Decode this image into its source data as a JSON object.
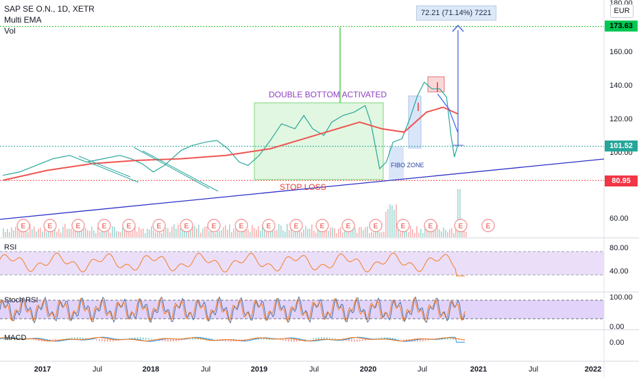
{
  "header": {
    "symbol": "SAP SE O.N., 1D, XETR",
    "indicator_1": "Multi EMA",
    "indicator_2": "Vol",
    "currency": "EUR"
  },
  "measure_label": "72.21 (71.14%) 7221",
  "price_badges": {
    "target": "173.63",
    "current": "101.52",
    "stop": "80.95"
  },
  "annotations": {
    "double_bottom": "DOUBLE BOTTOM ACTIVATED",
    "stop_loss": "STOP LOSS",
    "fibo_zone": "FIBO ZONE"
  },
  "earnings_marker": "E",
  "panes": {
    "rsi": "RSI",
    "stoch": "Stoch RSI",
    "macd": "MACD"
  },
  "colors": {
    "price_line": "#26a69a",
    "ema_long": "#ef5350",
    "ema_short": "#2962ff",
    "trendline": "#2b2fc7",
    "rsi_line": "#f57c1f",
    "rsi_band": "#e6d6f7",
    "stoch_k": "#4a6fa5",
    "stoch_d": "#f57c1f",
    "stoch_band": "#d9c8f7",
    "macd_line": "#2196f3",
    "signal_line": "#ff6d00",
    "target_green": "#00c853",
    "stop_red": "#ff0000"
  },
  "chart_data": {
    "type": "line",
    "title": "SAP SE O.N., 1D, XETR",
    "currency": "EUR",
    "x_ticks": [
      "2017",
      "Jul",
      "2018",
      "Jul",
      "2019",
      "Jul",
      "2020",
      "Jul",
      "2021",
      "Jul",
      "2022"
    ],
    "y_ticks": [
      "180.00",
      "160.00",
      "140.00",
      "120.00",
      "100.00",
      "60.00"
    ],
    "ylim": [
      50,
      185
    ],
    "series": [
      {
        "type": "line",
        "points": [
          [
            2016.8,
            84
          ],
          [
            2016.95,
            86
          ],
          [
            2017.1,
            90
          ],
          [
            2017.25,
            94
          ],
          [
            2017.4,
            96
          ],
          [
            2017.55,
            92
          ],
          [
            2017.7,
            94
          ],
          [
            2017.85,
            96
          ],
          [
            2017.95,
            94
          ],
          [
            2018.05,
            91
          ],
          [
            2018.15,
            86
          ],
          [
            2018.25,
            90
          ],
          [
            2018.4,
            99
          ],
          [
            2018.5,
            102
          ],
          [
            2018.62,
            104
          ],
          [
            2018.72,
            105
          ],
          [
            2018.82,
            100
          ],
          [
            2018.92,
            92
          ],
          [
            2019.0,
            90
          ],
          [
            2019.1,
            96
          ],
          [
            2019.2,
            105
          ],
          [
            2019.3,
            115
          ],
          [
            2019.42,
            112
          ],
          [
            2019.5,
            120
          ],
          [
            2019.58,
            112
          ],
          [
            2019.68,
            108
          ],
          [
            2019.75,
            116
          ],
          [
            2019.85,
            120
          ],
          [
            2019.95,
            122
          ],
          [
            2020.05,
            126
          ],
          [
            2020.1,
            116
          ],
          [
            2020.18,
            88
          ],
          [
            2020.24,
            92
          ],
          [
            2020.3,
            104
          ],
          [
            2020.38,
            106
          ],
          [
            2020.45,
            118
          ],
          [
            2020.52,
            132
          ],
          [
            2020.58,
            140
          ],
          [
            2020.65,
            136
          ],
          [
            2020.72,
            136
          ],
          [
            2020.78,
            131
          ],
          [
            2020.82,
            108
          ],
          [
            2020.85,
            95
          ],
          [
            2020.88,
            102
          ]
        ]
      },
      {
        "type": "line",
        "points": [
          [
            2016.8,
            81
          ],
          [
            2017.2,
            87
          ],
          [
            2017.6,
            91
          ],
          [
            2018.0,
            93
          ],
          [
            2018.4,
            94
          ],
          [
            2018.8,
            96
          ],
          [
            2019.2,
            100
          ],
          [
            2019.6,
            108
          ],
          [
            2020.0,
            116
          ],
          [
            2020.2,
            112
          ],
          [
            2020.4,
            110
          ],
          [
            2020.6,
            122
          ],
          [
            2020.75,
            125
          ],
          [
            2020.88,
            121
          ]
        ]
      },
      {
        "type": "line",
        "points": [
          [
            2020.7,
            133
          ],
          [
            2020.8,
            124
          ],
          [
            2020.88,
            110
          ]
        ]
      }
    ],
    "horizontal_levels": [
      {
        "label": "173.63",
        "value": 173.63
      },
      {
        "label": "101.52",
        "value": 101.52
      },
      {
        "label": "80.95",
        "value": 80.95
      }
    ],
    "annotations": [
      {
        "text": "DOUBLE BOTTOM ACTIVATED"
      },
      {
        "text": "STOP LOSS"
      },
      {
        "text": "FIBO ZONE"
      },
      {
        "text": "72.21 (71.14%) 7221"
      }
    ],
    "subpanes": [
      {
        "name": "RSI",
        "y_ticks": [
          "80.00",
          "40.00"
        ]
      },
      {
        "name": "Stoch RSI",
        "y_ticks": [
          "100.00",
          "0.00"
        ]
      },
      {
        "name": "MACD",
        "y_ticks": [
          "0.00"
        ]
      }
    ]
  }
}
